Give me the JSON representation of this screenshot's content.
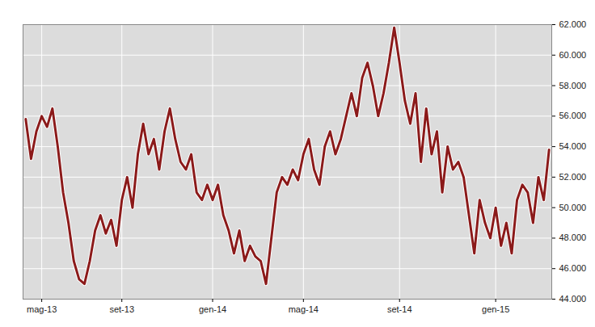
{
  "chart_data": {
    "type": "line",
    "color": "#8b1a1a",
    "grid": true,
    "categories": [
      null,
      null,
      null,
      "mag-13",
      null,
      null,
      null,
      null,
      null,
      null,
      null,
      null,
      null,
      null,
      null,
      null,
      null,
      null,
      "set-13",
      null,
      null,
      null,
      null,
      null,
      null,
      null,
      null,
      null,
      null,
      null,
      null,
      null,
      null,
      null,
      null,
      "gen-14",
      null,
      null,
      null,
      null,
      null,
      null,
      null,
      null,
      null,
      null,
      null,
      null,
      null,
      null,
      null,
      null,
      "mag-14",
      null,
      null,
      null,
      null,
      null,
      null,
      null,
      null,
      null,
      null,
      null,
      null,
      null,
      null,
      null,
      null,
      null,
      "set-14",
      null,
      null,
      null,
      null,
      null,
      null,
      null,
      null,
      null,
      null,
      null,
      null,
      null,
      null,
      null,
      null,
      null,
      "gen-15",
      null,
      null,
      null,
      null,
      null,
      null,
      null,
      null,
      null,
      null
    ],
    "values": [
      55800,
      53200,
      55000,
      56000,
      55300,
      56500,
      54000,
      51000,
      49000,
      46500,
      45300,
      45000,
      46500,
      48500,
      49500,
      48300,
      49200,
      47500,
      50500,
      52000,
      50000,
      53500,
      55500,
      53500,
      54500,
      52500,
      55000,
      56500,
      54500,
      53000,
      52500,
      53500,
      51000,
      50500,
      51500,
      50500,
      51500,
      49500,
      48500,
      47000,
      48500,
      46500,
      47500,
      46800,
      46500,
      45000,
      48000,
      51000,
      52000,
      51500,
      52500,
      51800,
      53500,
      54500,
      52500,
      51500,
      54000,
      55000,
      53500,
      54500,
      56000,
      57500,
      56000,
      58500,
      59500,
      58000,
      56000,
      57500,
      59500,
      61800,
      59500,
      57000,
      55500,
      57500,
      53000,
      56500,
      53500,
      55000,
      51000,
      54000,
      52500,
      53000,
      52000,
      49500,
      47000,
      50500,
      49000,
      48000,
      50000,
      47500,
      49000,
      47000,
      50500,
      51500,
      51000,
      49000,
      52000,
      50500,
      53800
    ],
    "ylim": [
      44000,
      62000
    ],
    "yticks": [
      {
        "value": 44000,
        "label": "44.000"
      },
      {
        "value": 46000,
        "label": "46.000"
      },
      {
        "value": 48000,
        "label": "48.000"
      },
      {
        "value": 50000,
        "label": "50.000"
      },
      {
        "value": 52000,
        "label": "52.000"
      },
      {
        "value": 54000,
        "label": "54.000"
      },
      {
        "value": 56000,
        "label": "56.000"
      },
      {
        "value": 58000,
        "label": "58.000"
      },
      {
        "value": 60000,
        "label": "60.000"
      },
      {
        "value": 62000,
        "label": "62.000"
      }
    ]
  }
}
